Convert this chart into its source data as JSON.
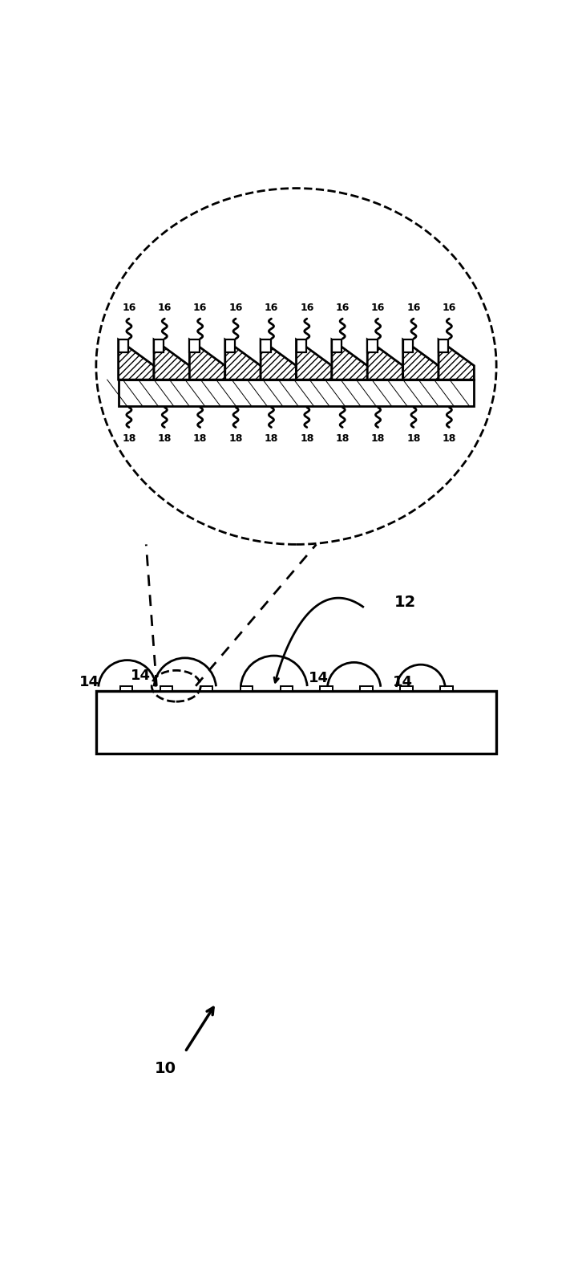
{
  "bg_color": "#ffffff",
  "line_color": "#000000",
  "fig_width": 7.21,
  "fig_height": 15.85,
  "dpi": 100,
  "n_grooves": 10,
  "groove_label": "16",
  "space_label": "18",
  "band_label": "12",
  "arc_label": "14",
  "figure_label": "10",
  "xlim": [
    0,
    10
  ],
  "ylim": [
    0,
    22
  ]
}
